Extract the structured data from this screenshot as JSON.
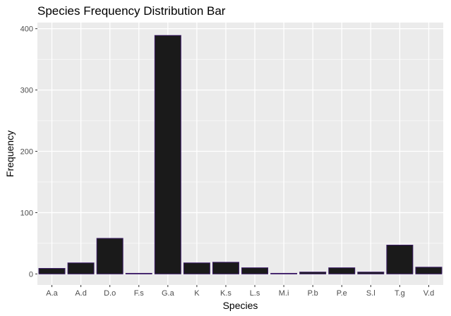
{
  "chart_data": {
    "type": "bar",
    "title": "Species Frequency Distribution Bar",
    "xlabel": "Species",
    "ylabel": "Frequency",
    "categories": [
      "A.a",
      "A.d",
      "D.o",
      "F.s",
      "G.a",
      "K",
      "K.s",
      "L.s",
      "M.i",
      "P.b",
      "P.e",
      "S.l",
      "T.g",
      "V.d"
    ],
    "values": [
      9,
      18,
      58,
      1,
      389,
      18,
      19,
      10,
      1,
      3,
      10,
      3,
      47,
      11
    ],
    "ylim": [
      -18,
      410
    ],
    "yticks": [
      0,
      100,
      200,
      300,
      400
    ],
    "grid": true,
    "legend": "none",
    "colors": {
      "panel": "#ebebeb",
      "grid_major": "#ffffff",
      "bar_fill": "#1a1a1a",
      "bar_outline": "#3b1a66"
    }
  }
}
